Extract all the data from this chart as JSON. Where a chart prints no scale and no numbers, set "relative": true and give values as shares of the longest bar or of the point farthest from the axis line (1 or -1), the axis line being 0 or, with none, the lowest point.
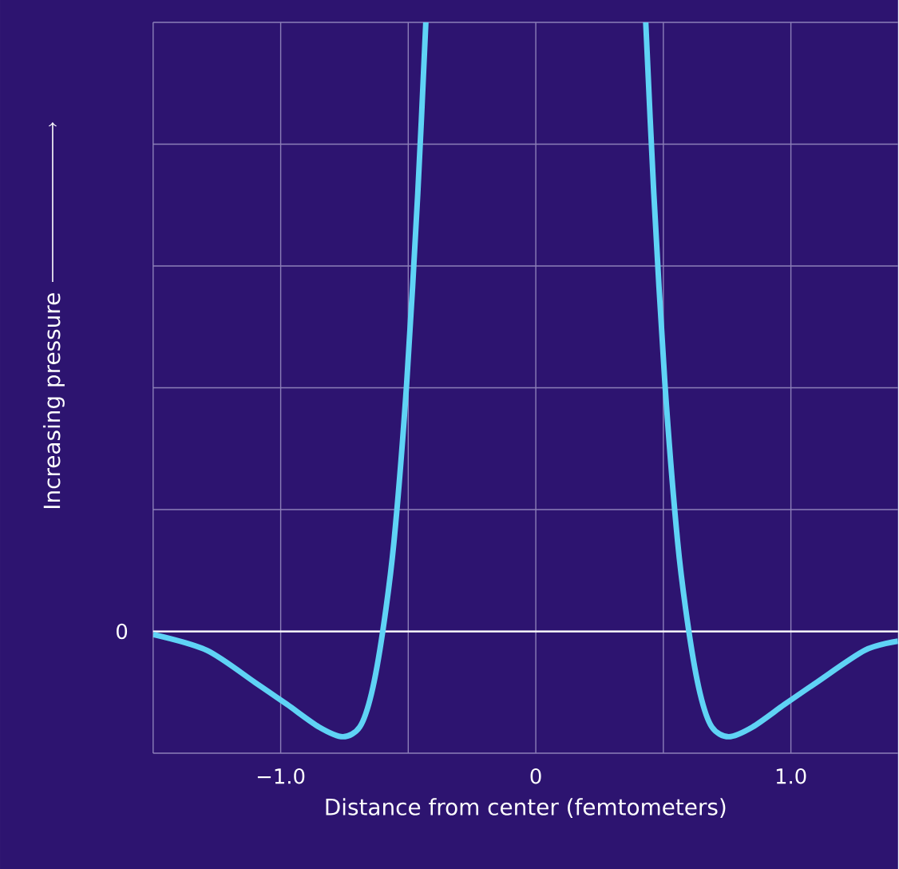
{
  "chart_data": {
    "type": "line",
    "relative": true,
    "xlabel": "Distance from center (femtometers)",
    "ylabel": "Increasing pressure",
    "x": [
      -1.5,
      -1.29,
      -1.1,
      -0.975,
      -0.85,
      -0.756,
      -0.69,
      -0.644,
      -0.6,
      -0.556,
      -0.506,
      -0.4625,
      -0.431,
      null,
      0.431,
      0.4625,
      0.506,
      0.556,
      0.6,
      0.644,
      0.69,
      0.756,
      0.85,
      0.975,
      1.1,
      1.29,
      1.42
    ],
    "series": [
      {
        "color": "#5fd3f5",
        "values": [
          -0.005,
          -0.031,
          -0.084,
          -0.12,
          -0.157,
          -0.173,
          -0.157,
          -0.102,
          0,
          0.147,
          0.408,
          0.72,
          1.0,
          null,
          1.0,
          0.72,
          0.408,
          0.147,
          0,
          -0.102,
          -0.157,
          -0.173,
          -0.157,
          -0.12,
          -0.084,
          -0.031,
          -0.016
        ]
      }
    ],
    "xlim": [
      -1.5,
      1.42
    ],
    "annotations": [
      "0"
    ],
    "xticks": [
      {
        "value": -1.5,
        "label": null
      },
      {
        "value": -1,
        "label": "−1.0"
      },
      {
        "value": -0.5,
        "label": null
      },
      0,
      {
        "value": 0.5,
        "label": null
      },
      {
        "value": 1,
        "label": "1.0"
      }
    ],
    "grid": true,
    "line_style": "solid",
    "marker": "none"
  }
}
